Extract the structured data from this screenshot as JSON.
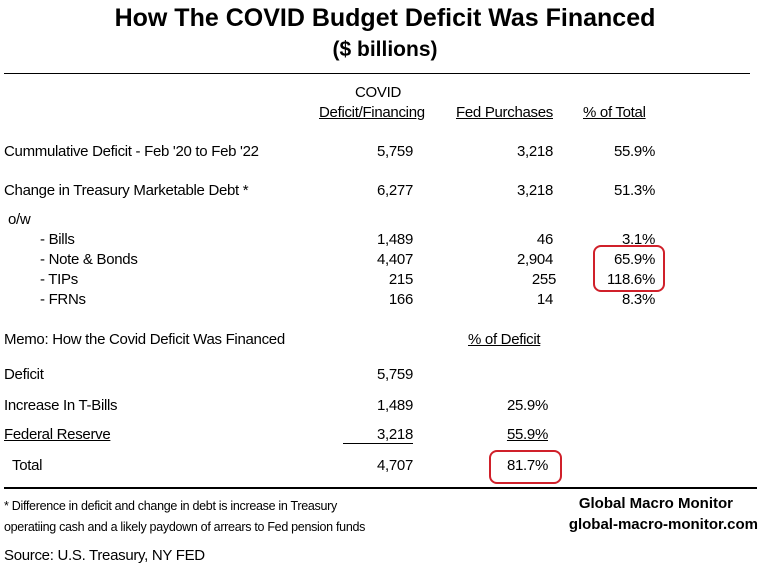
{
  "title": "How The COVID Budget Deficit Was Financed",
  "subtitle": "($ billions)",
  "headers": {
    "covid_top": "COVID",
    "covid": "Deficit/Financing",
    "fed": "Fed Purchases",
    "pct": "% of Total"
  },
  "rows": [
    {
      "label": "Cummulative Deficit - Feb '20 to Feb '22",
      "covid": "5,759",
      "fed": "3,218",
      "pct": "55.9%"
    },
    {
      "label": "Change in Treasury Marketable Debt  *",
      "covid": "6,277",
      "fed": "3,218",
      "pct": "51.3%"
    }
  ],
  "ow_label": "o/w",
  "sub_rows": [
    {
      "label": "- Bills",
      "covid": "1,489",
      "fed": "46",
      "pct": "3.1%"
    },
    {
      "label": "- Note & Bonds",
      "covid": "4,407",
      "fed": "2,904",
      "pct": "65.9%"
    },
    {
      "label": "- TIPs",
      "covid": "215",
      "fed": "255",
      "pct": "118.6%"
    },
    {
      "label": "- FRNs",
      "covid": "166",
      "fed": "14",
      "pct": "8.3%"
    }
  ],
  "memo": {
    "title": "Memo:  How the Covid Deficit Was Financed",
    "pct_header": "% of Deficit",
    "rows": [
      {
        "label": "Deficit",
        "value": "5,759",
        "pct": ""
      },
      {
        "label": "Increase In T-Bills",
        "value": "1,489",
        "pct": "25.9%"
      },
      {
        "label": "Federal Reserve",
        "value": "3,218",
        "pct": "55.9%"
      },
      {
        "label": "Total",
        "value": "4,707",
        "pct": "81.7%"
      }
    ]
  },
  "footnote": [
    "* Difference in deficit and change in debt is increase in Treasury",
    "operatiing cash and a likely paydown of arrears to Fed pension funds"
  ],
  "brand": {
    "name": "Global Macro Monitor",
    "url": "global-macro-monitor.com"
  },
  "source": "Source:  U.S. Treasury, NY FED",
  "colors": {
    "highlight": "#d0202a"
  }
}
